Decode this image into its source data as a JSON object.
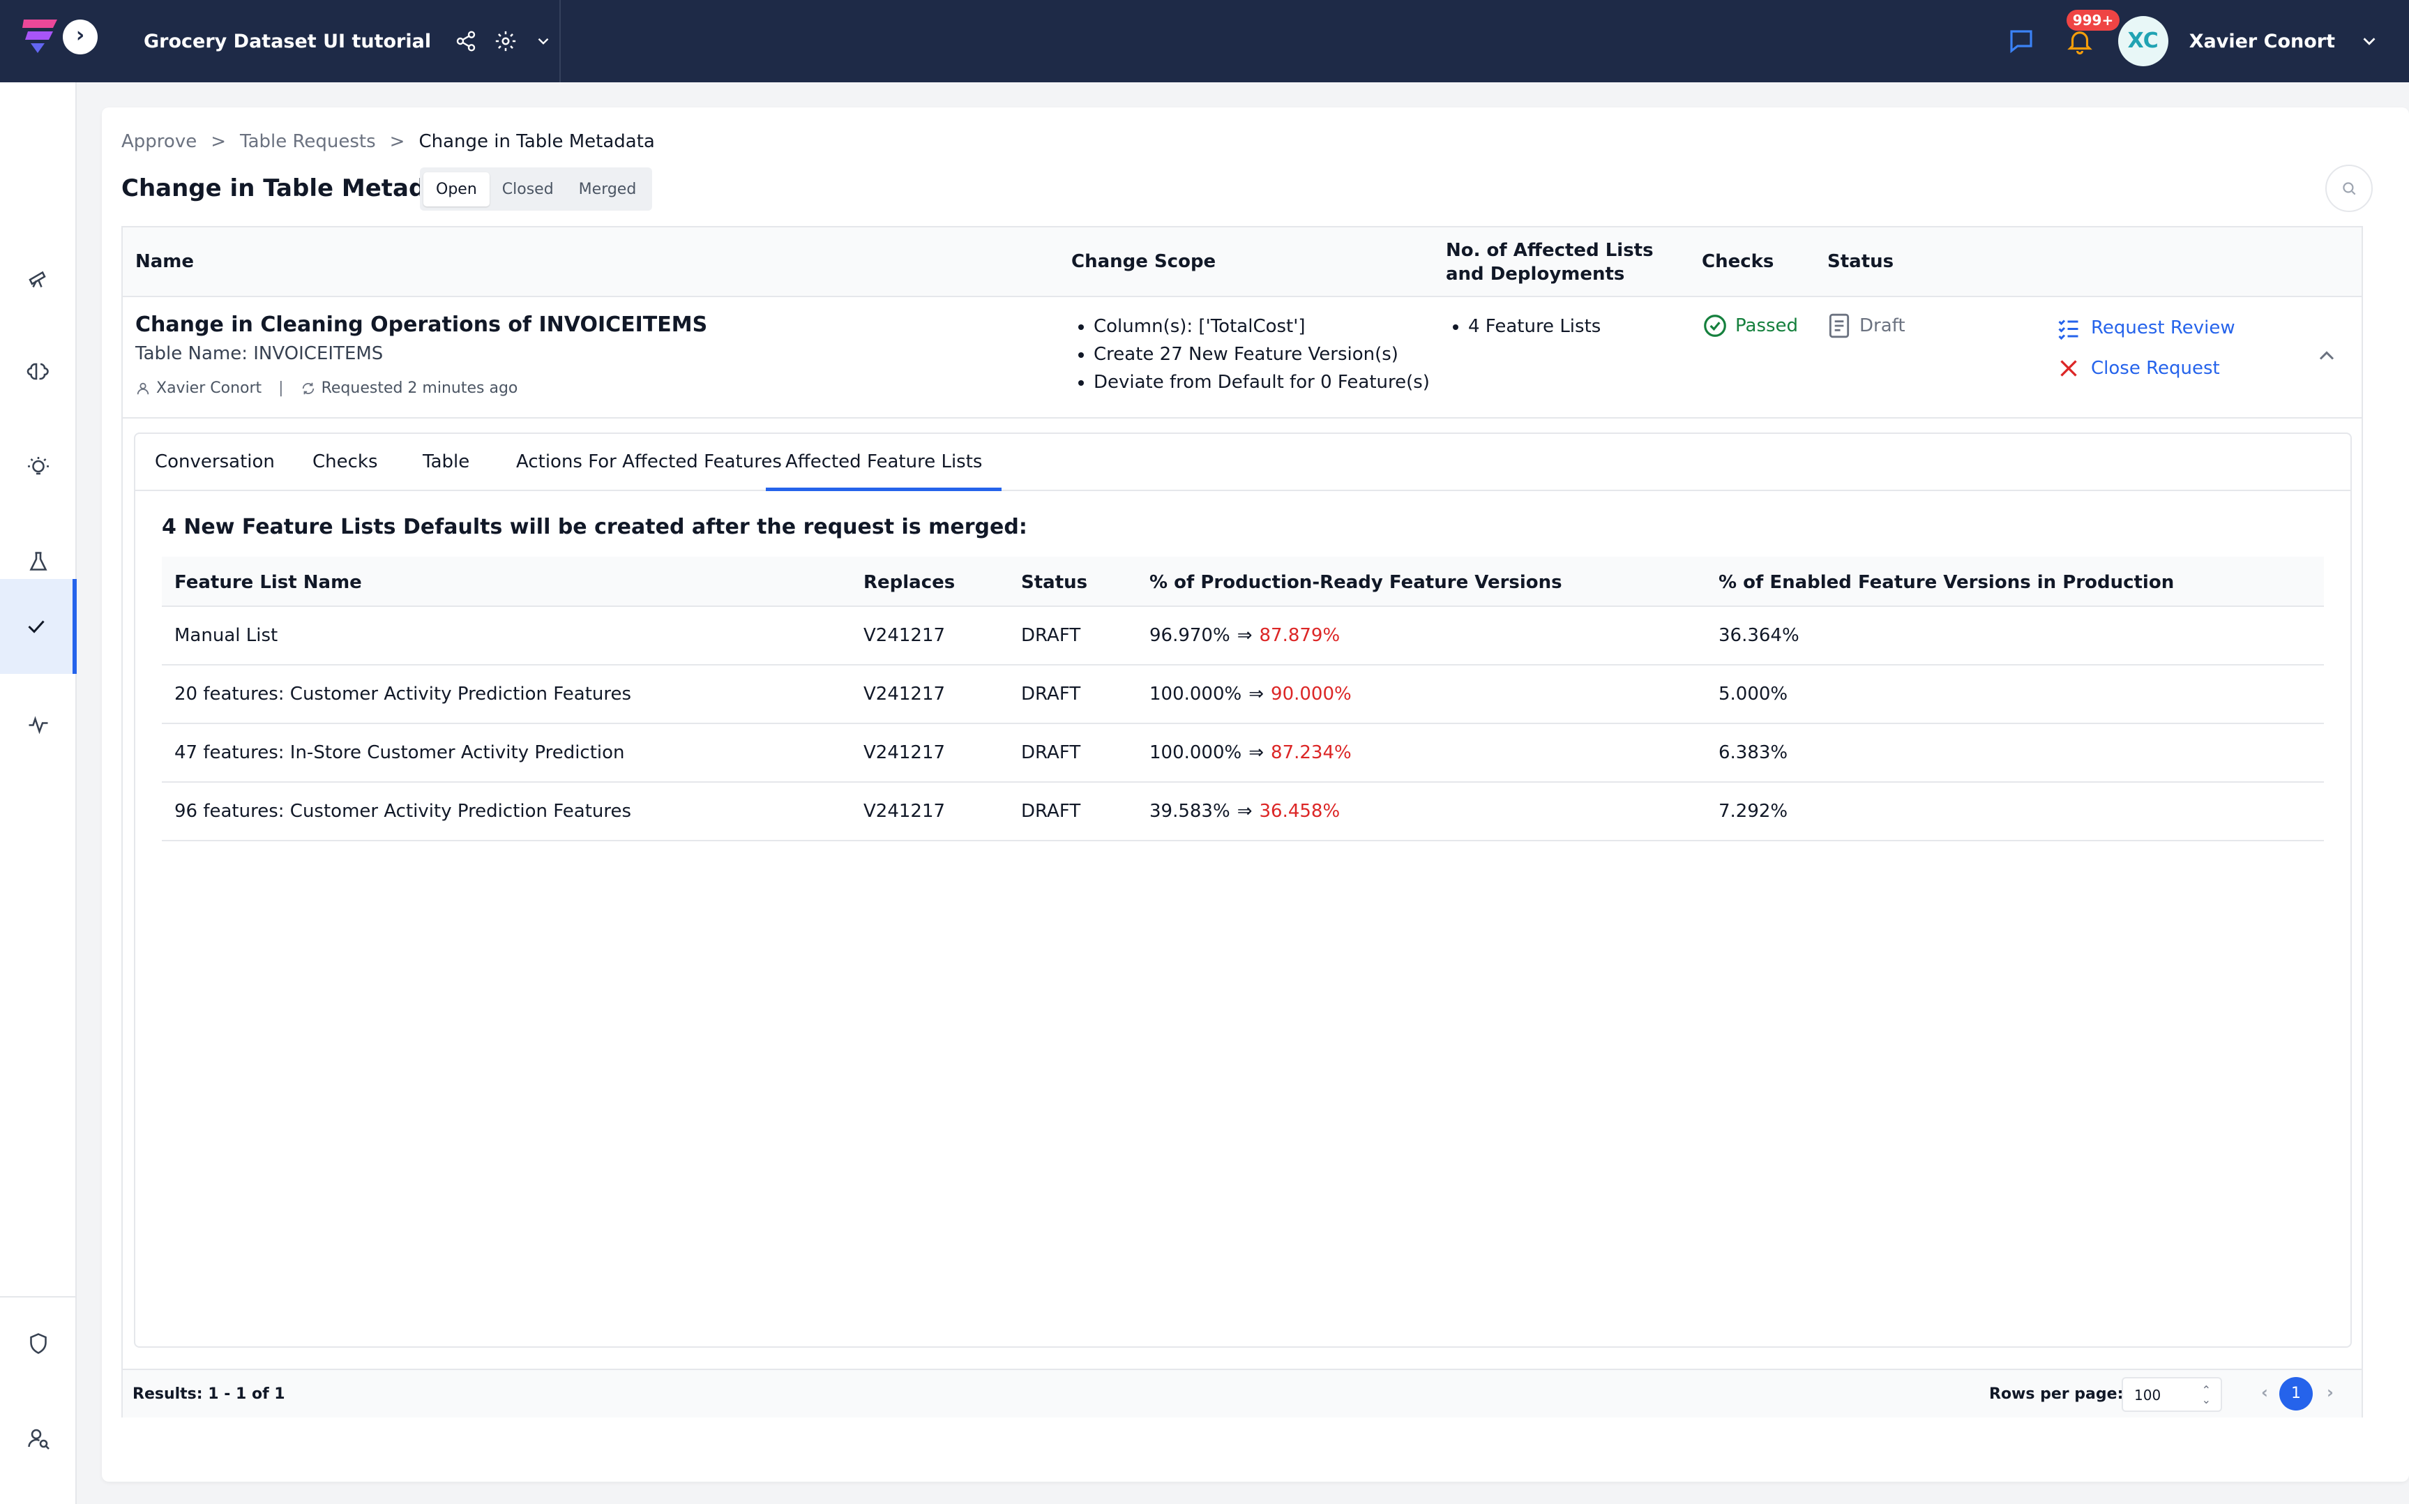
{
  "header": {
    "project_name": "Grocery Dataset UI tutorial",
    "notification_count": "999+",
    "user_initials": "XC",
    "user_name": "Xavier Conort"
  },
  "sidebar": {
    "items": [
      {
        "icon": "telescope-icon"
      },
      {
        "icon": "brain-icon"
      },
      {
        "icon": "lightbulb-icon"
      },
      {
        "icon": "flask-icon"
      },
      {
        "icon": "check-icon",
        "active": true
      },
      {
        "icon": "activity-icon"
      },
      {
        "icon": "shield-icon"
      },
      {
        "icon": "user-search-icon"
      }
    ]
  },
  "breadcrumb": {
    "items": [
      "Approve",
      "Table Requests",
      "Change in Table Metadata"
    ],
    "separator": ">"
  },
  "page": {
    "title": "Change in Table Metadata",
    "filters": [
      "Open",
      "Closed",
      "Merged"
    ],
    "active_filter": "Open"
  },
  "requests_table": {
    "columns": [
      "Name",
      "Change Scope",
      "No. of Affected Lists and Deployments",
      "Checks",
      "Status"
    ],
    "row": {
      "title": "Change in Cleaning Operations of INVOICEITEMS",
      "table_name": "Table Name: INVOICEITEMS",
      "requester": "Xavier Conort",
      "meta_separator": "|",
      "requested": "Requested 2 minutes ago",
      "scope": [
        "Column(s): ['TotalCost']",
        "Create 27 New Feature Version(s)",
        "Deviate from Default for 0 Feature(s)"
      ],
      "affected": [
        "4 Feature Lists"
      ],
      "checks": "Passed",
      "status": "Draft",
      "actions": {
        "review": "Request Review",
        "close": "Close Request"
      }
    }
  },
  "tabs": {
    "items": [
      "Conversation",
      "Checks",
      "Table",
      "Actions For Affected Features",
      "Affected Feature Lists"
    ],
    "active": "Affected Feature Lists"
  },
  "affected_lists": {
    "heading": "4 New Feature Lists Defaults will be created after the request is merged:",
    "columns": [
      "Feature List Name",
      "Replaces",
      "Status",
      "% of Production-Ready Feature Versions",
      "% of Enabled Feature Versions in Production"
    ],
    "arrow": "⇒",
    "rows": [
      {
        "name": "Manual List",
        "replaces": "V241217",
        "status": "DRAFT",
        "ready_old": "96.970%",
        "ready_new": "87.879%",
        "enabled": "36.364%"
      },
      {
        "name": "20 features: Customer Activity Prediction Features",
        "replaces": "V241217",
        "status": "DRAFT",
        "ready_old": "100.000%",
        "ready_new": "90.000%",
        "enabled": "5.000%"
      },
      {
        "name": "47 features: In-Store Customer Activity Prediction",
        "replaces": "V241217",
        "status": "DRAFT",
        "ready_old": "100.000%",
        "ready_new": "87.234%",
        "enabled": "6.383%"
      },
      {
        "name": "96 features: Customer Activity Prediction Features",
        "replaces": "V241217",
        "status": "DRAFT",
        "ready_old": "39.583%",
        "ready_new": "36.458%",
        "enabled": "7.292%"
      }
    ]
  },
  "footer": {
    "results": "Results: 1 - 1 of 1",
    "rows_per_page_label": "Rows per page:",
    "rows_per_page": "100",
    "current_page": "1"
  },
  "colors": {
    "topbar": "#1e2a47",
    "accent": "#2563eb",
    "passed": "#15803d",
    "decrease": "#dc2626"
  }
}
